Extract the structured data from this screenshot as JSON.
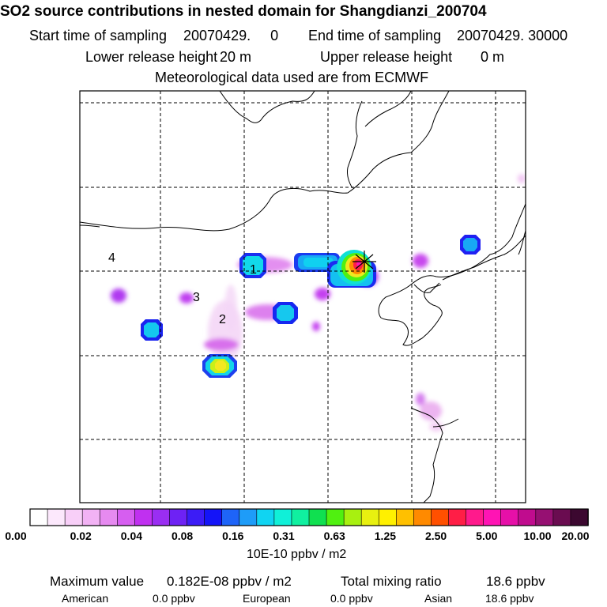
{
  "header": {
    "title": "SO2 source contributions in nested domain for Shangdianzi_200704",
    "start_label": "Start time of sampling",
    "start_value": "20070429.     0",
    "end_label": "End time of sampling",
    "end_value": "20070429. 30000",
    "lower_label": "Lower release height",
    "lower_value": "20 m",
    "upper_label": "Upper release height",
    "upper_value": "0 m",
    "met_line": "Meteorological data used are from ECMWF"
  },
  "regions": [
    {
      "id": "1",
      "label": "1"
    },
    {
      "id": "2",
      "label": "2"
    },
    {
      "id": "3",
      "label": "3"
    },
    {
      "id": "4",
      "label": "4"
    }
  ],
  "colorbar": {
    "colors": [
      "#ffffff",
      "#fce8fc",
      "#f8cff8",
      "#f2b2f4",
      "#e68af0",
      "#d65ef0",
      "#c030f0",
      "#9a2ef2",
      "#6e22f4",
      "#3c1cf6",
      "#1414f8",
      "#1e64f8",
      "#1e9cf8",
      "#10d4f2",
      "#10f0d8",
      "#10f0a0",
      "#10e050",
      "#50f010",
      "#a8f010",
      "#e8f010",
      "#fff000",
      "#ffc000",
      "#ff8a00",
      "#ff5000",
      "#ff1e46",
      "#ff1a8c",
      "#ff14b4",
      "#e610a8",
      "#c00c8e",
      "#961072",
      "#6a0c50",
      "#3c0830"
    ],
    "tick_labels": [
      "0.00",
      "0.02",
      "0.04",
      "0.08",
      "0.16",
      "0.31",
      "0.63",
      "1.25",
      "2.50",
      "5.00",
      "10.00",
      "20.00"
    ],
    "units": "10E-10 ppbv / m2"
  },
  "stats": {
    "max_label": "Maximum value",
    "max_value": "0.182E-08 ppbv / m2",
    "total_label": "Total mixing ratio",
    "total_value": "18.6 ppbv",
    "american_label": "American",
    "american_value": "0.0 ppbv",
    "european_label": "European",
    "european_value": "0.0 ppbv",
    "asian_label": "Asian",
    "asian_value": "18.6 ppbv"
  }
}
